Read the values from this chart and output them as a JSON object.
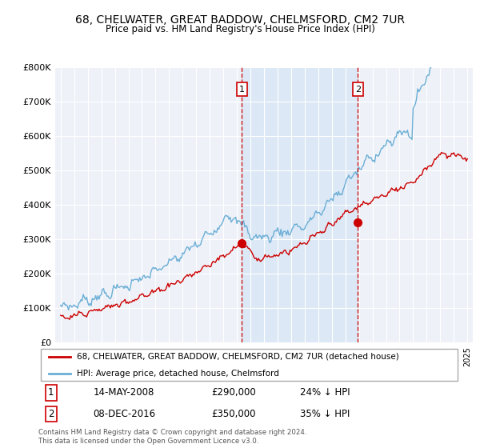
{
  "title": "68, CHELWATER, GREAT BADDOW, CHELMSFORD, CM2 7UR",
  "subtitle": "Price paid vs. HM Land Registry's House Price Index (HPI)",
  "ylim": [
    0,
    800000
  ],
  "yticks": [
    0,
    100000,
    200000,
    300000,
    400000,
    500000,
    600000,
    700000,
    800000
  ],
  "ytick_labels": [
    "£0",
    "£100K",
    "£200K",
    "£300K",
    "£400K",
    "£500K",
    "£600K",
    "£700K",
    "£800K"
  ],
  "hpi_color": "#6baed6",
  "price_color": "#cc0000",
  "ann1_t": 2008.37,
  "ann2_t": 2016.93,
  "ann1_y": 290000,
  "ann2_y": 350000,
  "annotation1_date": "14-MAY-2008",
  "annotation1_price": "£290,000",
  "annotation1_hpi": "24% ↓ HPI",
  "annotation2_date": "08-DEC-2016",
  "annotation2_price": "£350,000",
  "annotation2_hpi": "35% ↓ HPI",
  "legend_price_label": "68, CHELWATER, GREAT BADDOW, CHELMSFORD, CM2 7UR (detached house)",
  "legend_hpi_label": "HPI: Average price, detached house, Chelmsford",
  "footer": "Contains HM Land Registry data © Crown copyright and database right 2024.\nThis data is licensed under the Open Government Licence v3.0.",
  "bg_color": "#eef2f8",
  "shade_color": "#dce8f5",
  "xlim_left": 1994.6,
  "xlim_right": 2025.4
}
